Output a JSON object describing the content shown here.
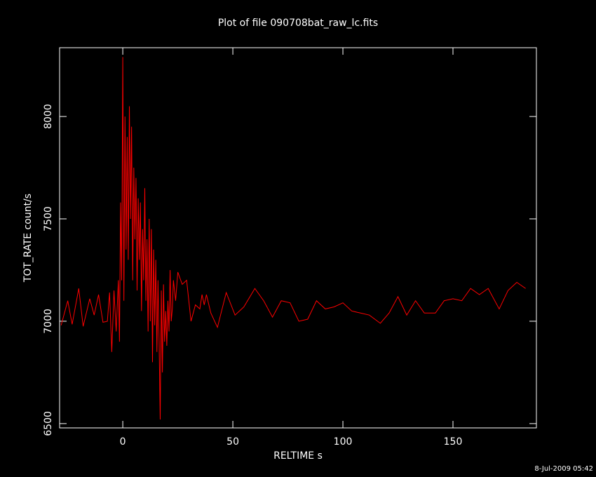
{
  "chart_data": {
    "type": "line",
    "title": "Plot of file 090708bat_raw_lc.fits",
    "xlabel": "RELTIME  s",
    "ylabel": "TOT_RATE  count/s",
    "footer": "8-Jul-2009 05:42",
    "color": "#ff0000",
    "x": [
      -28,
      -25,
      -23,
      -20,
      -18,
      -15,
      -13,
      -11,
      -9,
      -7,
      -6,
      -5,
      -4,
      -3,
      -2,
      -1.5,
      -1,
      -0.5,
      0,
      0.5,
      1,
      1.5,
      2,
      2.5,
      3,
      3.5,
      4,
      4.5,
      5,
      5.5,
      6,
      6.5,
      7,
      7.5,
      8,
      8.5,
      9,
      9.5,
      10,
      10.5,
      11,
      11.5,
      12,
      12.5,
      13,
      13.5,
      14,
      14.5,
      15,
      15.5,
      16,
      16.5,
      17,
      17.5,
      18,
      18.5,
      19,
      19.5,
      20,
      20.5,
      21,
      21.5,
      22,
      22.5,
      23,
      24,
      25,
      27,
      29,
      31,
      33,
      35,
      36,
      37,
      38,
      40,
      43,
      47,
      51,
      55,
      60,
      64,
      68,
      72,
      76,
      80,
      84,
      88,
      92,
      96,
      100,
      104,
      108,
      112,
      117,
      121,
      125,
      129,
      133,
      137,
      142,
      146,
      150,
      154,
      158,
      162,
      166,
      171,
      175,
      179,
      183
    ],
    "values": [
      6980,
      7100,
      6985,
      7160,
      6975,
      7110,
      7030,
      7130,
      6995,
      7000,
      7140,
      6850,
      7150,
      6950,
      7200,
      6900,
      7580,
      7200,
      8290,
      7100,
      8000,
      7350,
      7900,
      7300,
      8050,
      7500,
      7950,
      7200,
      7750,
      7400,
      7700,
      7150,
      7600,
      7300,
      7580,
      7050,
      7450,
      7200,
      7650,
      7100,
      7400,
      6950,
      7500,
      7000,
      7450,
      6800,
      7350,
      6980,
      7300,
      6850,
      7200,
      6900,
      6520,
      7150,
      6750,
      7180,
      6900,
      7050,
      6880,
      7100,
      6950,
      7250,
      7000,
      7060,
      7200,
      7100,
      7240,
      7180,
      7200,
      7000,
      7080,
      7060,
      7130,
      7080,
      7130,
      7040,
      6970,
      7140,
      7030,
      7070,
      7160,
      7100,
      7020,
      7100,
      7090,
      7000,
      7010,
      7100,
      7060,
      7070,
      7090,
      7050,
      7040,
      7030,
      6990,
      7040,
      7120,
      7030,
      7100,
      7040,
      7040,
      7100,
      7110,
      7100,
      7160,
      7130,
      7160,
      7060,
      7150,
      7190,
      7160
    ],
    "xlim": [
      -28.7,
      187.9
    ],
    "xticks": [
      0,
      50,
      100,
      150
    ],
    "ylim": [
      6479,
      8336
    ],
    "yticks": [
      6500,
      7000,
      7500,
      8000
    ]
  }
}
